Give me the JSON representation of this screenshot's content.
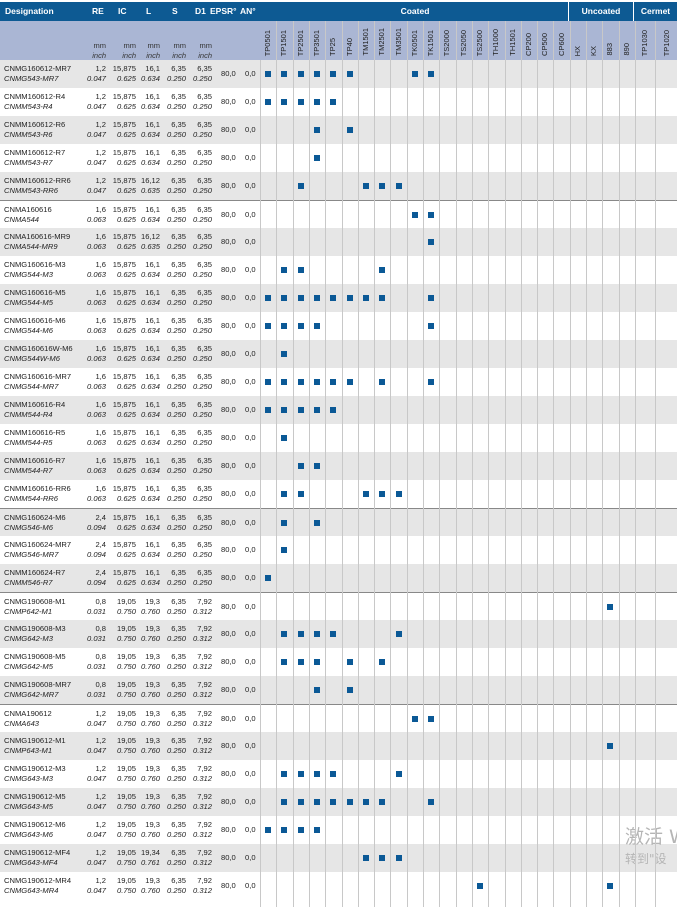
{
  "header": {
    "designation": "Designation",
    "re": "RE",
    "ic": "IC",
    "l": "L",
    "s": "S",
    "d1": "D1",
    "epsr": "EPSR°",
    "an": "AN°",
    "unit_mm": "mm",
    "unit_inch": "inch",
    "groups": [
      {
        "label": "Coated"
      },
      {
        "label": "Uncoated"
      },
      {
        "label": "Cermet"
      }
    ]
  },
  "grades": [
    "TP0501",
    "TP1501",
    "TP2501",
    "TP3501",
    "TP25",
    "TP40",
    "TM1501",
    "TM2501",
    "TM3501",
    "TK0501",
    "TK1501",
    "TS2000",
    "TS2050",
    "TS2500",
    "TH1000",
    "TH1501",
    "CP200",
    "CP500",
    "CP600",
    "HX",
    "KX",
    "883",
    "890",
    "TP1030",
    "TP1020"
  ],
  "mark_color": "#0b5996",
  "rows": [
    {
      "iso": "CNMG160612-MR7",
      "ansi": "CNMG543-MR7",
      "re": [
        "1,2",
        "0.047"
      ],
      "ic": [
        "15,875",
        "0.625"
      ],
      "l": [
        "16,1",
        "0.634"
      ],
      "s": [
        "6,35",
        "0.250"
      ],
      "d1": [
        "6,35",
        "0.250"
      ],
      "epsr": "80,0",
      "an": "0,0",
      "marks": [
        "TP0501",
        "TP1501",
        "TP2501",
        "TP3501",
        "TP25",
        "TP40",
        "TK0501",
        "TK1501"
      ]
    },
    {
      "iso": "CNMM160612-R4",
      "ansi": "CNMM543-R4",
      "re": [
        "1,2",
        "0.047"
      ],
      "ic": [
        "15,875",
        "0.625"
      ],
      "l": [
        "16,1",
        "0.634"
      ],
      "s": [
        "6,35",
        "0.250"
      ],
      "d1": [
        "6,35",
        "0.250"
      ],
      "epsr": "80,0",
      "an": "0,0",
      "marks": [
        "TP0501",
        "TP1501",
        "TP2501",
        "TP3501",
        "TP25"
      ]
    },
    {
      "iso": "CNMM160612-R6",
      "ansi": "CNMM543-R6",
      "re": [
        "1,2",
        "0.047"
      ],
      "ic": [
        "15,875",
        "0.625"
      ],
      "l": [
        "16,1",
        "0.634"
      ],
      "s": [
        "6,35",
        "0.250"
      ],
      "d1": [
        "6,35",
        "0.250"
      ],
      "epsr": "80,0",
      "an": "0,0",
      "marks": [
        "TP3501",
        "TP40"
      ]
    },
    {
      "iso": "CNMM160612-R7",
      "ansi": "CNMM543-R7",
      "re": [
        "1,2",
        "0.047"
      ],
      "ic": [
        "15,875",
        "0.625"
      ],
      "l": [
        "16,1",
        "0.634"
      ],
      "s": [
        "6,35",
        "0.250"
      ],
      "d1": [
        "6,35",
        "0.250"
      ],
      "epsr": "80,0",
      "an": "0,0",
      "marks": [
        "TP3501"
      ]
    },
    {
      "iso": "CNMM160612-RR6",
      "ansi": "CNMM543-RR6",
      "re": [
        "1,2",
        "0.047"
      ],
      "ic": [
        "15,875",
        "0.625"
      ],
      "l": [
        "16,12",
        "0.635"
      ],
      "s": [
        "6,35",
        "0.250"
      ],
      "d1": [
        "6,35",
        "0.250"
      ],
      "epsr": "80,0",
      "an": "0,0",
      "marks": [
        "TP2501",
        "TM1501",
        "TM2501",
        "TM3501"
      ]
    },
    {
      "iso": "CNMA160616",
      "ansi": "CNMA544",
      "re": [
        "1,6",
        "0.063"
      ],
      "ic": [
        "15,875",
        "0.625"
      ],
      "l": [
        "16,1",
        "0.634"
      ],
      "s": [
        "6,35",
        "0.250"
      ],
      "d1": [
        "6,35",
        "0.250"
      ],
      "epsr": "80,0",
      "an": "0,0",
      "marks": [
        "TK0501",
        "TK1501"
      ],
      "sep": true
    },
    {
      "iso": "CNMA160616-MR9",
      "ansi": "CNMA544-MR9",
      "re": [
        "1,6",
        "0.063"
      ],
      "ic": [
        "15,875",
        "0.625"
      ],
      "l": [
        "16,12",
        "0.635"
      ],
      "s": [
        "6,35",
        "0.250"
      ],
      "d1": [
        "6,35",
        "0.250"
      ],
      "epsr": "80,0",
      "an": "0,0",
      "marks": [
        "TK1501"
      ]
    },
    {
      "iso": "CNMG160616-M3",
      "ansi": "CNMG544-M3",
      "re": [
        "1,6",
        "0.063"
      ],
      "ic": [
        "15,875",
        "0.625"
      ],
      "l": [
        "16,1",
        "0.634"
      ],
      "s": [
        "6,35",
        "0.250"
      ],
      "d1": [
        "6,35",
        "0.250"
      ],
      "epsr": "80,0",
      "an": "0,0",
      "marks": [
        "TP1501",
        "TP2501",
        "TM2501"
      ]
    },
    {
      "iso": "CNMG160616-M5",
      "ansi": "CNMG544-M5",
      "re": [
        "1,6",
        "0.063"
      ],
      "ic": [
        "15,875",
        "0.625"
      ],
      "l": [
        "16,1",
        "0.634"
      ],
      "s": [
        "6,35",
        "0.250"
      ],
      "d1": [
        "6,35",
        "0.250"
      ],
      "epsr": "80,0",
      "an": "0,0",
      "marks": [
        "TP0501",
        "TP1501",
        "TP2501",
        "TP3501",
        "TP25",
        "TP40",
        "TM1501",
        "TM2501",
        "TK1501"
      ]
    },
    {
      "iso": "CNMG160616-M6",
      "ansi": "CNMG544-M6",
      "re": [
        "1,6",
        "0.063"
      ],
      "ic": [
        "15,875",
        "0.625"
      ],
      "l": [
        "16,1",
        "0.634"
      ],
      "s": [
        "6,35",
        "0.250"
      ],
      "d1": [
        "6,35",
        "0.250"
      ],
      "epsr": "80,0",
      "an": "0,0",
      "marks": [
        "TP0501",
        "TP1501",
        "TP2501",
        "TP3501",
        "TK1501"
      ]
    },
    {
      "iso": "CNMG160616W-M6",
      "ansi": "CNMG544W-M6",
      "re": [
        "1,6",
        "0.063"
      ],
      "ic": [
        "15,875",
        "0.625"
      ],
      "l": [
        "16,1",
        "0.634"
      ],
      "s": [
        "6,35",
        "0.250"
      ],
      "d1": [
        "6,35",
        "0.250"
      ],
      "epsr": "80,0",
      "an": "0,0",
      "marks": [
        "TP1501"
      ]
    },
    {
      "iso": "CNMG160616-MR7",
      "ansi": "CNMG544-MR7",
      "re": [
        "1,6",
        "0.063"
      ],
      "ic": [
        "15,875",
        "0.625"
      ],
      "l": [
        "16,1",
        "0.634"
      ],
      "s": [
        "6,35",
        "0.250"
      ],
      "d1": [
        "6,35",
        "0.250"
      ],
      "epsr": "80,0",
      "an": "0,0",
      "marks": [
        "TP0501",
        "TP1501",
        "TP2501",
        "TP3501",
        "TP25",
        "TP40",
        "TM2501",
        "TK1501"
      ]
    },
    {
      "iso": "CNMM160616-R4",
      "ansi": "CNMM544-R4",
      "re": [
        "1,6",
        "0.063"
      ],
      "ic": [
        "15,875",
        "0.625"
      ],
      "l": [
        "16,1",
        "0.634"
      ],
      "s": [
        "6,35",
        "0.250"
      ],
      "d1": [
        "6,35",
        "0.250"
      ],
      "epsr": "80,0",
      "an": "0,0",
      "marks": [
        "TP0501",
        "TP1501",
        "TP2501",
        "TP3501",
        "TP25"
      ]
    },
    {
      "iso": "CNMM160616-R5",
      "ansi": "CNMM544-R5",
      "re": [
        "1,6",
        "0.063"
      ],
      "ic": [
        "15,875",
        "0.625"
      ],
      "l": [
        "16,1",
        "0.634"
      ],
      "s": [
        "6,35",
        "0.250"
      ],
      "d1": [
        "6,35",
        "0.250"
      ],
      "epsr": "80,0",
      "an": "0,0",
      "marks": [
        "TP1501"
      ]
    },
    {
      "iso": "CNMM160616-R7",
      "ansi": "CNMM544-R7",
      "re": [
        "1,6",
        "0.063"
      ],
      "ic": [
        "15,875",
        "0.625"
      ],
      "l": [
        "16,1",
        "0.634"
      ],
      "s": [
        "6,35",
        "0.250"
      ],
      "d1": [
        "6,35",
        "0.250"
      ],
      "epsr": "80,0",
      "an": "0,0",
      "marks": [
        "TP2501",
        "TP3501"
      ]
    },
    {
      "iso": "CNMM160616-RR6",
      "ansi": "CNMM544-RR6",
      "re": [
        "1,6",
        "0.063"
      ],
      "ic": [
        "15,875",
        "0.625"
      ],
      "l": [
        "16,1",
        "0.634"
      ],
      "s": [
        "6,35",
        "0.250"
      ],
      "d1": [
        "6,35",
        "0.250"
      ],
      "epsr": "80,0",
      "an": "0,0",
      "marks": [
        "TP1501",
        "TP2501",
        "TM1501",
        "TM2501",
        "TM3501"
      ]
    },
    {
      "iso": "CNMG160624-M6",
      "ansi": "CNMG546-M6",
      "re": [
        "2,4",
        "0.094"
      ],
      "ic": [
        "15,875",
        "0.625"
      ],
      "l": [
        "16,1",
        "0.634"
      ],
      "s": [
        "6,35",
        "0.250"
      ],
      "d1": [
        "6,35",
        "0.250"
      ],
      "epsr": "80,0",
      "an": "0,0",
      "marks": [
        "TP1501",
        "TP3501"
      ],
      "sep": true
    },
    {
      "iso": "CNMG160624-MR7",
      "ansi": "CNMG546-MR7",
      "re": [
        "2,4",
        "0.094"
      ],
      "ic": [
        "15,875",
        "0.625"
      ],
      "l": [
        "16,1",
        "0.634"
      ],
      "s": [
        "6,35",
        "0.250"
      ],
      "d1": [
        "6,35",
        "0.250"
      ],
      "epsr": "80,0",
      "an": "0,0",
      "marks": [
        "TP1501"
      ]
    },
    {
      "iso": "CNMM160624-R7",
      "ansi": "CNMM546-R7",
      "re": [
        "2,4",
        "0.094"
      ],
      "ic": [
        "15,875",
        "0.625"
      ],
      "l": [
        "16,1",
        "0.634"
      ],
      "s": [
        "6,35",
        "0.250"
      ],
      "d1": [
        "6,35",
        "0.250"
      ],
      "epsr": "80,0",
      "an": "0,0",
      "marks": [
        "TP0501"
      ]
    },
    {
      "iso": "CNMG190608-M1",
      "ansi": "CNMP642-M1",
      "re": [
        "0,8",
        "0.031"
      ],
      "ic": [
        "19,05",
        "0.750"
      ],
      "l": [
        "19,3",
        "0.760"
      ],
      "s": [
        "6,35",
        "0.250"
      ],
      "d1": [
        "7,92",
        "0.312"
      ],
      "epsr": "80,0",
      "an": "0,0",
      "marks": [
        "883"
      ],
      "sep": true
    },
    {
      "iso": "CNMG190608-M3",
      "ansi": "CNMG642-M3",
      "re": [
        "0,8",
        "0.031"
      ],
      "ic": [
        "19,05",
        "0.750"
      ],
      "l": [
        "19,3",
        "0.760"
      ],
      "s": [
        "6,35",
        "0.250"
      ],
      "d1": [
        "7,92",
        "0.312"
      ],
      "epsr": "80,0",
      "an": "0,0",
      "marks": [
        "TP1501",
        "TP2501",
        "TP3501",
        "TP25",
        "TM3501"
      ]
    },
    {
      "iso": "CNMG190608-M5",
      "ansi": "CNMG642-M5",
      "re": [
        "0,8",
        "0.031"
      ],
      "ic": [
        "19,05",
        "0.750"
      ],
      "l": [
        "19,3",
        "0.760"
      ],
      "s": [
        "6,35",
        "0.250"
      ],
      "d1": [
        "7,92",
        "0.312"
      ],
      "epsr": "80,0",
      "an": "0,0",
      "marks": [
        "TP1501",
        "TP2501",
        "TP3501",
        "TP40",
        "TM2501"
      ]
    },
    {
      "iso": "CNMG190608-MR7",
      "ansi": "CNMG642-MR7",
      "re": [
        "0,8",
        "0.031"
      ],
      "ic": [
        "19,05",
        "0.750"
      ],
      "l": [
        "19,3",
        "0.760"
      ],
      "s": [
        "6,35",
        "0.250"
      ],
      "d1": [
        "7,92",
        "0.312"
      ],
      "epsr": "80,0",
      "an": "0,0",
      "marks": [
        "TP3501",
        "TP40"
      ]
    },
    {
      "iso": "CNMA190612",
      "ansi": "CNMA643",
      "re": [
        "1,2",
        "0.047"
      ],
      "ic": [
        "19,05",
        "0.750"
      ],
      "l": [
        "19,3",
        "0.760"
      ],
      "s": [
        "6,35",
        "0.250"
      ],
      "d1": [
        "7,92",
        "0.312"
      ],
      "epsr": "80,0",
      "an": "0,0",
      "marks": [
        "TK0501",
        "TK1501"
      ],
      "sep": true
    },
    {
      "iso": "CNMG190612-M1",
      "ansi": "CNMP643-M1",
      "re": [
        "1,2",
        "0.047"
      ],
      "ic": [
        "19,05",
        "0.750"
      ],
      "l": [
        "19,3",
        "0.760"
      ],
      "s": [
        "6,35",
        "0.250"
      ],
      "d1": [
        "7,92",
        "0.312"
      ],
      "epsr": "80,0",
      "an": "0,0",
      "marks": [
        "883"
      ]
    },
    {
      "iso": "CNMG190612-M3",
      "ansi": "CNMG643-M3",
      "re": [
        "1,2",
        "0.047"
      ],
      "ic": [
        "19,05",
        "0.750"
      ],
      "l": [
        "19,3",
        "0.760"
      ],
      "s": [
        "6,35",
        "0.250"
      ],
      "d1": [
        "7,92",
        "0.312"
      ],
      "epsr": "80,0",
      "an": "0,0",
      "marks": [
        "TP1501",
        "TP2501",
        "TP3501",
        "TP25",
        "TM3501"
      ]
    },
    {
      "iso": "CNMG190612-M5",
      "ansi": "CNMG643-M5",
      "re": [
        "1,2",
        "0.047"
      ],
      "ic": [
        "19,05",
        "0.750"
      ],
      "l": [
        "19,3",
        "0.760"
      ],
      "s": [
        "6,35",
        "0.250"
      ],
      "d1": [
        "7,92",
        "0.312"
      ],
      "epsr": "80,0",
      "an": "0,0",
      "marks": [
        "TP1501",
        "TP2501",
        "TP3501",
        "TP25",
        "TP40",
        "TM1501",
        "TM2501",
        "TK1501"
      ]
    },
    {
      "iso": "CNMG190612-M6",
      "ansi": "CNMG643-M6",
      "re": [
        "1,2",
        "0.047"
      ],
      "ic": [
        "19,05",
        "0.750"
      ],
      "l": [
        "19,3",
        "0.760"
      ],
      "s": [
        "6,35",
        "0.250"
      ],
      "d1": [
        "7,92",
        "0.312"
      ],
      "epsr": "80,0",
      "an": "0,0",
      "marks": [
        "TP0501",
        "TP1501",
        "TP2501",
        "TP3501"
      ]
    },
    {
      "iso": "CNMG190612-MF4",
      "ansi": "CNMG643-MF4",
      "re": [
        "1,2",
        "0.047"
      ],
      "ic": [
        "19,05",
        "0.750"
      ],
      "l": [
        "19,34",
        "0.761"
      ],
      "s": [
        "6,35",
        "0.250"
      ],
      "d1": [
        "7,92",
        "0.312"
      ],
      "epsr": "80,0",
      "an": "0,0",
      "marks": [
        "TM1501",
        "TM2501",
        "TM3501"
      ]
    },
    {
      "iso": "CNMG190612-MR4",
      "ansi": "CNMG643-MR4",
      "re": [
        "1,2",
        "0.047"
      ],
      "ic": [
        "19,05",
        "0.750"
      ],
      "l": [
        "19,3",
        "0.760"
      ],
      "s": [
        "6,35",
        "0.250"
      ],
      "d1": [
        "7,92",
        "0.312"
      ],
      "epsr": "80,0",
      "an": "0,0",
      "marks": [
        "TS2500",
        "883"
      ]
    }
  ],
  "watermark": {
    "line1": "激活 W",
    "line2": "转到\"设"
  }
}
